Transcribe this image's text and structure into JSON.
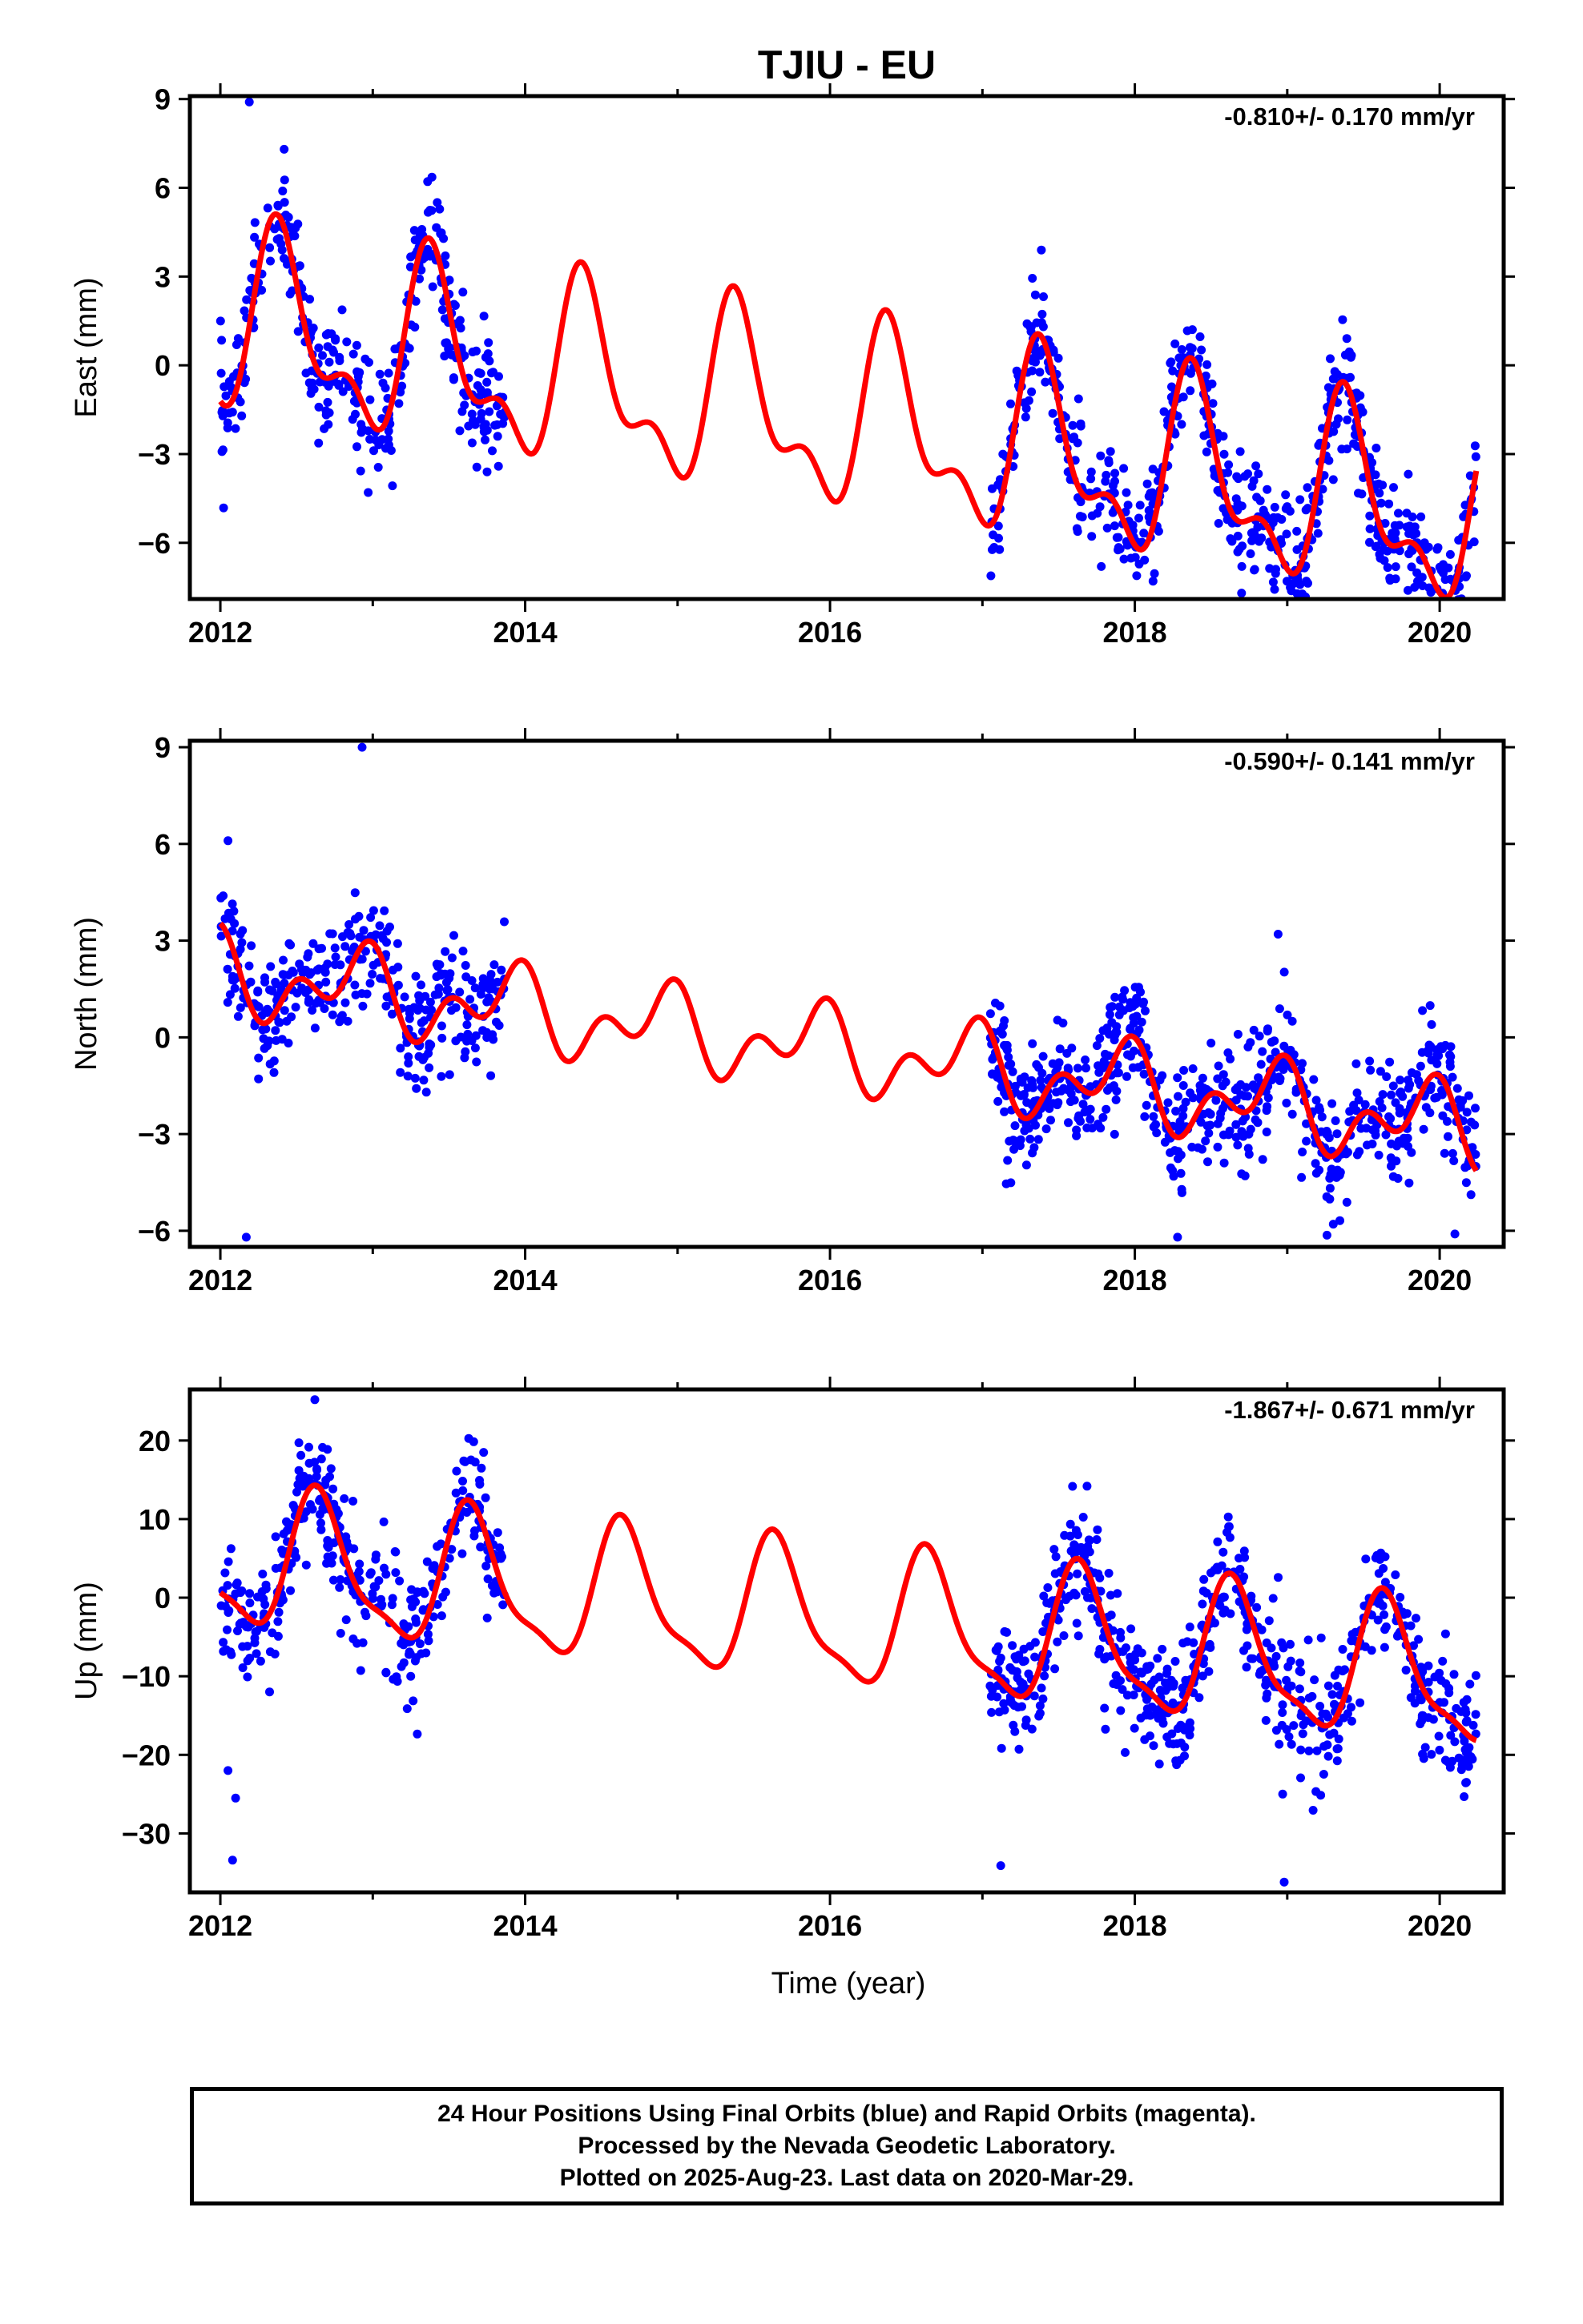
{
  "title": "TJIU - EU",
  "colors": {
    "data": "#0000ff",
    "model": "#ff0000",
    "axis": "#000000"
  },
  "footer": {
    "line1": "24 Hour Positions Using Final Orbits (blue) and Rapid Orbits (magenta).",
    "line2": "Processed by the Nevada Geodetic Laboratory.",
    "line3": "Plotted on 2025-Aug-23. Last data on 2020-Mar-29."
  },
  "chart_data": [
    {
      "type": "scatter",
      "panel": "east",
      "ylabel": "East (mm)",
      "xlabel": "",
      "rate": "-0.810+/- 0.170 mm/yr",
      "xlim": [
        2011.8,
        2020.42
      ],
      "ylim": [
        -7.9,
        9.1
      ],
      "xticks": [
        "2012",
        "2014",
        "2016",
        "2018",
        "2020"
      ],
      "yticks": [
        "9",
        "6",
        "3",
        "0",
        "−3",
        "−6"
      ],
      "ytick_values": [
        9,
        6,
        3,
        0,
        -3,
        -6
      ],
      "model": {
        "offset": 1.4,
        "trend": -0.81,
        "annual_amp": 2.7,
        "annual_peak": 2012.4,
        "semi_amp": 1.4,
        "semi_peak": 2012.35
      },
      "data_segments": [
        {
          "start": 2012.0,
          "end": 2013.87,
          "n": 360,
          "noise": 1.0
        },
        {
          "start": 2017.05,
          "end": 2020.24,
          "n": 650,
          "noise": 0.95
        }
      ],
      "outliers": [
        [
          2012.19,
          8.9
        ],
        [
          2018.7,
          -7.7
        ],
        [
          2013.75,
          -3.6
        ],
        [
          2017.78,
          -6.8
        ]
      ]
    },
    {
      "type": "scatter",
      "panel": "north",
      "ylabel": "North (mm)",
      "xlabel": "",
      "rate": "-0.590+/- 0.141 mm/yr",
      "xlim": [
        2011.8,
        2020.42
      ],
      "ylim": [
        -6.5,
        9.2
      ],
      "xticks": [
        "2012",
        "2014",
        "2016",
        "2018",
        "2020"
      ],
      "yticks": [
        "9",
        "6",
        "3",
        "0",
        "−3",
        "−6"
      ],
      "ytick_values": [
        9,
        6,
        3,
        0,
        -3,
        -6
      ],
      "model": {
        "offset": 2.0,
        "trend": -0.59,
        "annual_amp": 0.9,
        "annual_peak": 2012.9,
        "semi_amp": 0.8,
        "semi_peak": 2012.5
      },
      "data_segments": [
        {
          "start": 2012.0,
          "end": 2013.87,
          "n": 340,
          "noise": 0.9
        },
        {
          "start": 2017.05,
          "end": 2020.24,
          "n": 650,
          "noise": 0.95
        }
      ],
      "outliers": [
        [
          2012.93,
          9.0
        ],
        [
          2012.17,
          -6.2
        ],
        [
          2018.28,
          -6.2
        ],
        [
          2020.1,
          -6.1
        ],
        [
          2012.05,
          6.1
        ],
        [
          2018.94,
          3.2
        ]
      ]
    },
    {
      "type": "scatter",
      "panel": "up",
      "ylabel": "Up (mm)",
      "xlabel": "Time (year)",
      "rate": "-1.867+/- 0.671 mm/yr",
      "xlim": [
        2011.8,
        2020.42
      ],
      "ylim": [
        -37.5,
        26.5
      ],
      "xticks": [
        "2012",
        "2014",
        "2016",
        "2018",
        "2020"
      ],
      "yticks": [
        "20",
        "10",
        "0",
        "−10",
        "−20",
        "−30"
      ],
      "ytick_values": [
        20,
        10,
        0,
        -10,
        -20,
        -30
      ],
      "model": {
        "offset": 4.8,
        "trend": -1.867,
        "annual_amp": 8.4,
        "annual_peak": 2012.65,
        "semi_amp": 2.5,
        "semi_peak": 2012.6
      },
      "data_segments": [
        {
          "start": 2012.0,
          "end": 2013.87,
          "n": 360,
          "noise": 3.8
        },
        {
          "start": 2017.05,
          "end": 2020.24,
          "n": 650,
          "noise": 3.9
        }
      ],
      "outliers": [
        [
          2012.08,
          -33.4
        ],
        [
          2017.12,
          -34.1
        ],
        [
          2018.98,
          -36.2
        ],
        [
          2012.62,
          25.2
        ],
        [
          2012.05,
          -22.0
        ],
        [
          2012.1,
          -25.5
        ],
        [
          2020.07,
          -21.6
        ],
        [
          2018.97,
          -25.0
        ]
      ]
    }
  ]
}
